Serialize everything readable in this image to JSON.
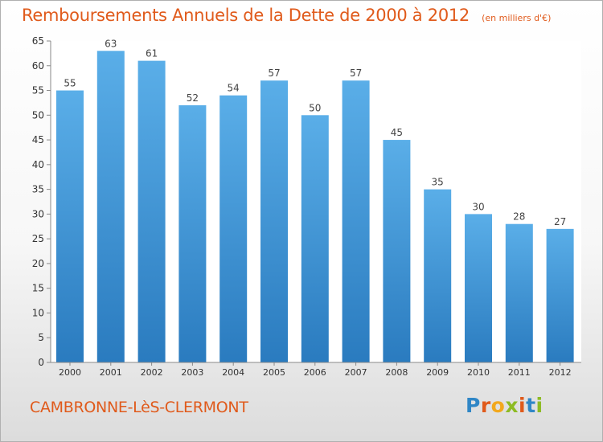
{
  "header": {
    "title": "Remboursements Annuels de la Dette de 2000 à 2012",
    "unit": "(en milliers d'€)"
  },
  "footer": {
    "commune": "CAMBRONNE-LèS-CLERMONT",
    "logo": [
      "P",
      "r",
      "o",
      "x",
      "i",
      "t",
      "i"
    ]
  },
  "colors": {
    "title": "#e05a1b",
    "bar_top": "#5aaee8",
    "bar_bottom": "#2a7bbf"
  },
  "chart_data": {
    "type": "bar",
    "categories": [
      "2000",
      "2001",
      "2002",
      "2003",
      "2004",
      "2005",
      "2006",
      "2007",
      "2008",
      "2009",
      "2010",
      "2011",
      "2012"
    ],
    "values": [
      55,
      63,
      61,
      52,
      54,
      57,
      50,
      57,
      45,
      35,
      30,
      28,
      27
    ],
    "ylim": [
      0,
      65
    ],
    "yticks": [
      0,
      5,
      10,
      15,
      20,
      25,
      30,
      35,
      40,
      45,
      50,
      55,
      60,
      65
    ],
    "grid": false,
    "legend": "none"
  }
}
